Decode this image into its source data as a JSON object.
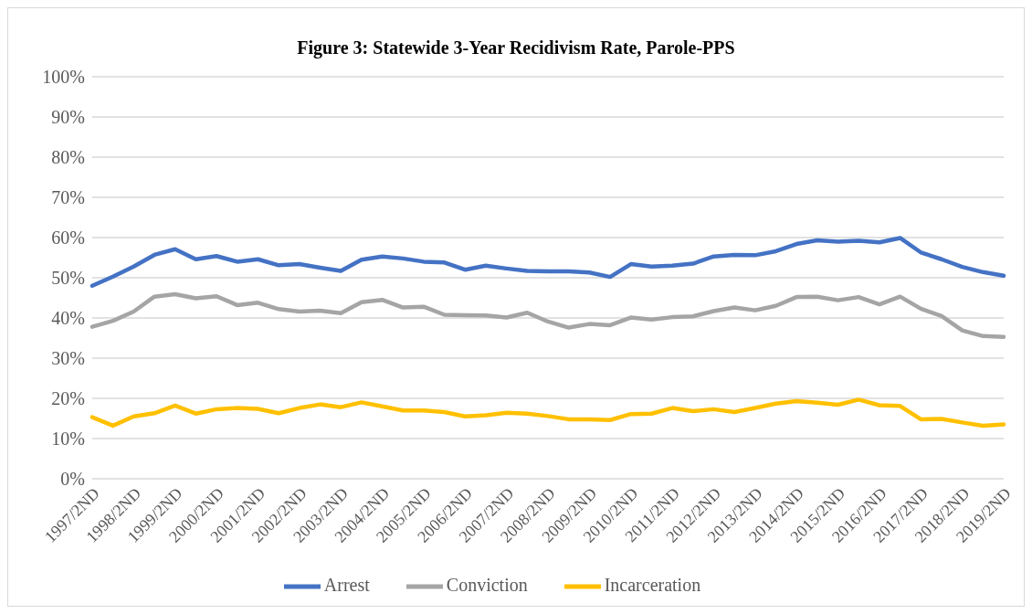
{
  "chart_data": {
    "type": "line",
    "title": "Figure 3: Statewide 3-Year Recidivism Rate, Parole-PPS",
    "categories": [
      "1997/2ND",
      null,
      "1998/2ND",
      null,
      "1999/2ND",
      null,
      "2000/2ND",
      null,
      "2001/2ND",
      null,
      "2002/2ND",
      null,
      "2003/2ND",
      null,
      "2004/2ND",
      null,
      "2005/2ND",
      null,
      "2006/2ND",
      null,
      "2007/2ND",
      null,
      "2008/2ND",
      null,
      "2009/2ND",
      null,
      "2010/2ND",
      null,
      "2011/2ND",
      null,
      "2012/2ND",
      null,
      "2013/2ND",
      null,
      "2014/2ND",
      null,
      "2015/2ND",
      null,
      "2016/2ND",
      null,
      "2017/2ND",
      null,
      "2018/2ND",
      null,
      "2019/2ND"
    ],
    "series": [
      {
        "name": "Arrest",
        "color": "#4472c4",
        "values": [
          48,
          50.3,
          52.8,
          55.7,
          57.1,
          54.6,
          55.4,
          54,
          54.6,
          53.1,
          53.4,
          52.5,
          51.7,
          54.5,
          55.3,
          54.8,
          54,
          53.8,
          52,
          53,
          52.3,
          51.7,
          51.6,
          51.6,
          51.3,
          50.2,
          53.4,
          52.8,
          53,
          53.5,
          55.3,
          55.7,
          55.6,
          56.6,
          58.4,
          59.3,
          59,
          59.2,
          58.8,
          59.9,
          56.3,
          54.6,
          52.7,
          51.4,
          50.5
        ]
      },
      {
        "name": "Conviction",
        "color": "#a5a5a5",
        "values": [
          37.8,
          39.3,
          41.6,
          45.3,
          45.9,
          44.9,
          45.4,
          43.2,
          43.8,
          42.2,
          41.6,
          41.8,
          41.2,
          43.9,
          44.5,
          42.6,
          42.8,
          40.8,
          40.7,
          40.6,
          40.1,
          41.3,
          39.1,
          37.6,
          38.5,
          38.2,
          40.1,
          39.6,
          40.2,
          40.4,
          41.7,
          42.6,
          41.9,
          43,
          45.2,
          45.3,
          44.4,
          45.2,
          43.4,
          45.3,
          42.3,
          40.5,
          36.9,
          35.5,
          35.3
        ]
      },
      {
        "name": "Incarceration",
        "color": "#ffc000",
        "values": [
          15.3,
          13.2,
          15.5,
          16.3,
          18.2,
          16.2,
          17.3,
          17.6,
          17.4,
          16.3,
          17.6,
          18.5,
          17.8,
          19,
          18,
          17,
          17,
          16.6,
          15.5,
          15.8,
          16.4,
          16.2,
          15.6,
          14.8,
          14.8,
          14.6,
          16.1,
          16.2,
          17.6,
          16.8,
          17.3,
          16.6,
          17.6,
          18.7,
          19.3,
          18.9,
          18.4,
          19.7,
          18.3,
          18.1,
          14.8,
          14.9,
          14,
          13.2,
          13.5
        ]
      }
    ],
    "ylim": [
      0,
      100
    ],
    "yticks": [
      {
        "value": 0,
        "label": "0%"
      },
      {
        "value": 10,
        "label": "10%"
      },
      {
        "value": 20,
        "label": "20%"
      },
      {
        "value": 30,
        "label": "30%"
      },
      {
        "value": 40,
        "label": "40%"
      },
      {
        "value": 50,
        "label": "50%"
      },
      {
        "value": 60,
        "label": "60%"
      },
      {
        "value": 70,
        "label": "70%"
      },
      {
        "value": 80,
        "label": "80%"
      },
      {
        "value": 90,
        "label": "90%"
      },
      {
        "value": 100,
        "label": "100%"
      }
    ],
    "grid": "y",
    "legend": "bottom",
    "marker": "none",
    "line_style": "solid"
  }
}
